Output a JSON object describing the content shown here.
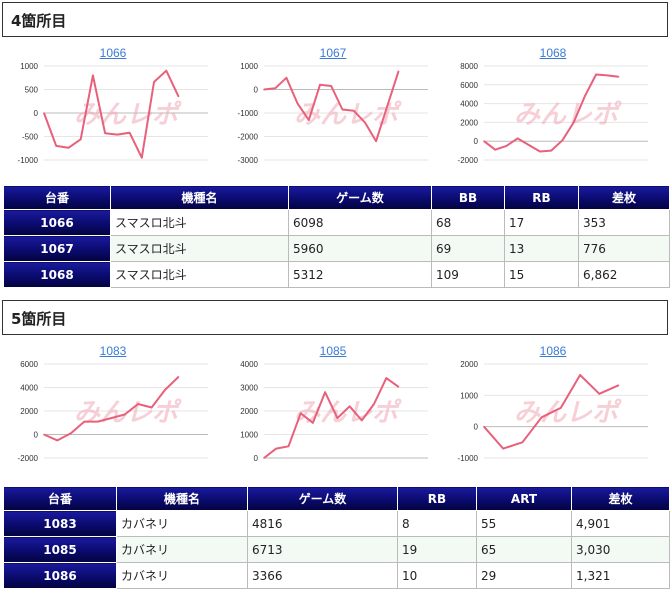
{
  "sections": [
    {
      "title": "4箇所目",
      "charts": [
        {
          "title": "1066",
          "yticks": [
            "1000",
            "500",
            "0",
            "-500",
            "-1000"
          ],
          "watermark": "みんレポ",
          "chart_data": {
            "type": "line",
            "title": "1066",
            "ylim": [
              -1000,
              1000
            ],
            "yticks": [
              1000,
              500,
              0,
              -500,
              -1000
            ],
            "color": "#e8607a",
            "values": [
              0,
              -700,
              -740,
              -560,
              800,
              -430,
              -460,
              -420,
              -950,
              660,
              900,
              353
            ]
          }
        },
        {
          "title": "1067",
          "yticks": [
            "1000",
            "0",
            "-1000",
            "-2000",
            "-3000"
          ],
          "watermark": "みんレポ",
          "chart_data": {
            "type": "line",
            "title": "1067",
            "ylim": [
              -3000,
              1000
            ],
            "yticks": [
              1000,
              0,
              -1000,
              -2000,
              -3000
            ],
            "color": "#e8607a",
            "values": [
              0,
              50,
              500,
              -600,
              -1300,
              200,
              150,
              -850,
              -900,
              -1400,
              -2200,
              -700,
              776
            ]
          }
        },
        {
          "title": "1068",
          "yticks": [
            "8000",
            "6000",
            "4000",
            "2000",
            "0",
            "-2000"
          ],
          "watermark": "みんレポ",
          "chart_data": {
            "type": "line",
            "title": "1068",
            "ylim": [
              -2000,
              8000
            ],
            "yticks": [
              8000,
              6000,
              4000,
              2000,
              0,
              -2000
            ],
            "color": "#e8607a",
            "values": [
              0,
              -900,
              -500,
              300,
              -400,
              -1100,
              -1000,
              100,
              2000,
              4800,
              7100,
              7000,
              6862
            ]
          }
        }
      ],
      "table": {
        "headers": [
          "台番",
          "機種名",
          "ゲーム数",
          "BB",
          "RB",
          "差枚"
        ],
        "rows": [
          [
            "1066",
            "スマスロ北斗",
            "6098",
            "68",
            "17",
            "353"
          ],
          [
            "1067",
            "スマスロ北斗",
            "5960",
            "69",
            "13",
            "776"
          ],
          [
            "1068",
            "スマスロ北斗",
            "5312",
            "109",
            "15",
            "6,862"
          ]
        ]
      }
    },
    {
      "title": "5箇所目",
      "charts": [
        {
          "title": "1083",
          "yticks": [
            "6000",
            "4000",
            "2000",
            "0",
            "-2000"
          ],
          "watermark": "みんレポ",
          "chart_data": {
            "type": "line",
            "title": "1083",
            "ylim": [
              -2000,
              6000
            ],
            "yticks": [
              6000,
              4000,
              2000,
              0,
              -2000
            ],
            "color": "#e8607a",
            "values": [
              0,
              -500,
              100,
              1100,
              1100,
              1400,
              1700,
              2600,
              2300,
              3800,
              4901
            ]
          }
        },
        {
          "title": "1085",
          "yticks": [
            "4000",
            "3000",
            "2000",
            "1000",
            "0"
          ],
          "watermark": "みんレポ",
          "chart_data": {
            "type": "line",
            "title": "1085",
            "ylim": [
              0,
              4000
            ],
            "yticks": [
              4000,
              3000,
              2000,
              1000,
              0
            ],
            "color": "#e8607a",
            "values": [
              0,
              400,
              500,
              1900,
              1500,
              2800,
              1700,
              2200,
              1600,
              2300,
              3400,
              3030
            ]
          }
        },
        {
          "title": "1086",
          "yticks": [
            "2000",
            "1000",
            "0",
            "-1000"
          ],
          "watermark": "みんレポ",
          "chart_data": {
            "type": "line",
            "title": "1086",
            "ylim": [
              -1000,
              2000
            ],
            "yticks": [
              2000,
              1000,
              0,
              -1000
            ],
            "color": "#e8607a",
            "values": [
              0,
              -700,
              -500,
              300,
              600,
              1650,
              1050,
              1321
            ]
          }
        }
      ],
      "table": {
        "headers": [
          "台番",
          "機種名",
          "ゲーム数",
          "RB",
          "ART",
          "差枚"
        ],
        "rows": [
          [
            "1083",
            "カバネリ",
            "4816",
            "8",
            "55",
            "4,901"
          ],
          [
            "1085",
            "カバネリ",
            "6713",
            "19",
            "65",
            "3,030"
          ],
          [
            "1086",
            "カバネリ",
            "3366",
            "10",
            "29",
            "1,321"
          ]
        ]
      }
    }
  ]
}
